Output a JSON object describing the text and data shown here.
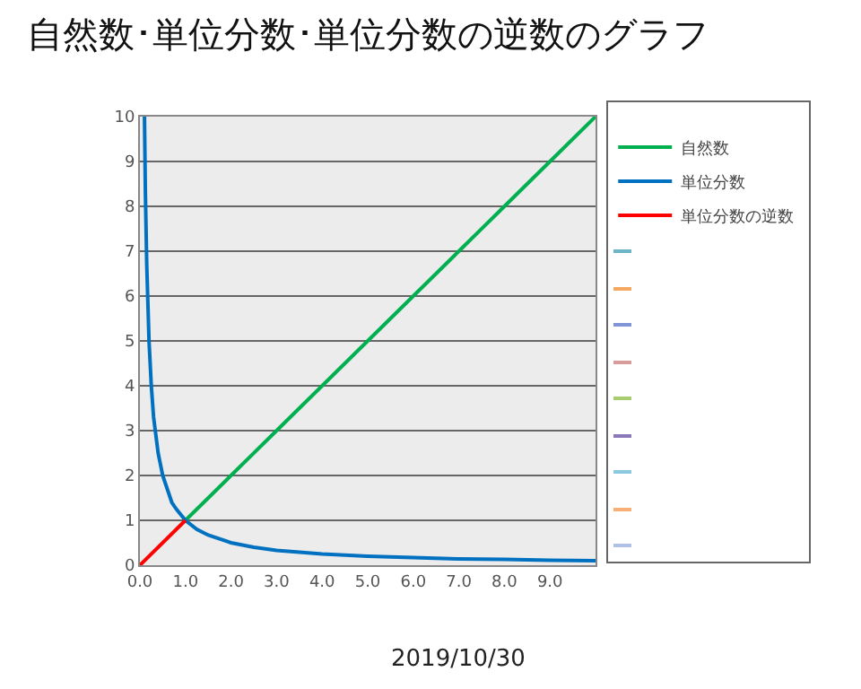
{
  "chart_data": {
    "type": "line",
    "title": "自然数･単位分数･単位分数の逆数のグラフ",
    "xlim": [
      0,
      10
    ],
    "xticks": [
      {
        "value": 0,
        "label": "0.0"
      },
      {
        "value": 1,
        "label": "1.0"
      },
      {
        "value": 2,
        "label": "2.0"
      },
      {
        "value": 3,
        "label": "3.0"
      },
      {
        "value": 4,
        "label": "4.0"
      },
      {
        "value": 5,
        "label": "5.0"
      },
      {
        "value": 6,
        "label": "6.0"
      },
      {
        "value": 7,
        "label": "7.0"
      },
      {
        "value": 8,
        "label": "8.0"
      },
      {
        "value": 9,
        "label": "9.0"
      }
    ],
    "ylim": [
      0,
      10
    ],
    "yticks": [
      0,
      1,
      2,
      3,
      4,
      5,
      6,
      7,
      8,
      9,
      10
    ],
    "grid": "y",
    "legend": "right",
    "marker": "none",
    "line_style": "solid",
    "series": [
      {
        "name": "自然数",
        "color": "#00b050",
        "x": [
          1,
          2,
          3,
          4,
          5,
          6,
          7,
          8,
          9,
          10
        ],
        "values": [
          1,
          2,
          3,
          4,
          5,
          6,
          7,
          8,
          9,
          10
        ]
      },
      {
        "name": "単位分数",
        "color": "#0070c0",
        "x": [
          0.1,
          0.12,
          0.15,
          0.2,
          0.25,
          0.3,
          0.4,
          0.5,
          0.6,
          0.7,
          0.8,
          1,
          1.25,
          1.5,
          2,
          2.5,
          3,
          4,
          5,
          6,
          7,
          8,
          9,
          10
        ],
        "values": [
          10,
          8.3,
          6.7,
          5,
          4,
          3.3,
          2.5,
          2,
          1.7,
          1.4,
          1.25,
          1,
          0.8,
          0.67,
          0.5,
          0.4,
          0.33,
          0.25,
          0.2,
          0.17,
          0.14,
          0.13,
          0.11,
          0.1
        ]
      },
      {
        "name": "単位分数の逆数",
        "color": "#ff0000",
        "x": [
          0,
          1
        ],
        "values": [
          0,
          1
        ]
      }
    ],
    "annotations": [
      "2019/10/30"
    ]
  }
}
